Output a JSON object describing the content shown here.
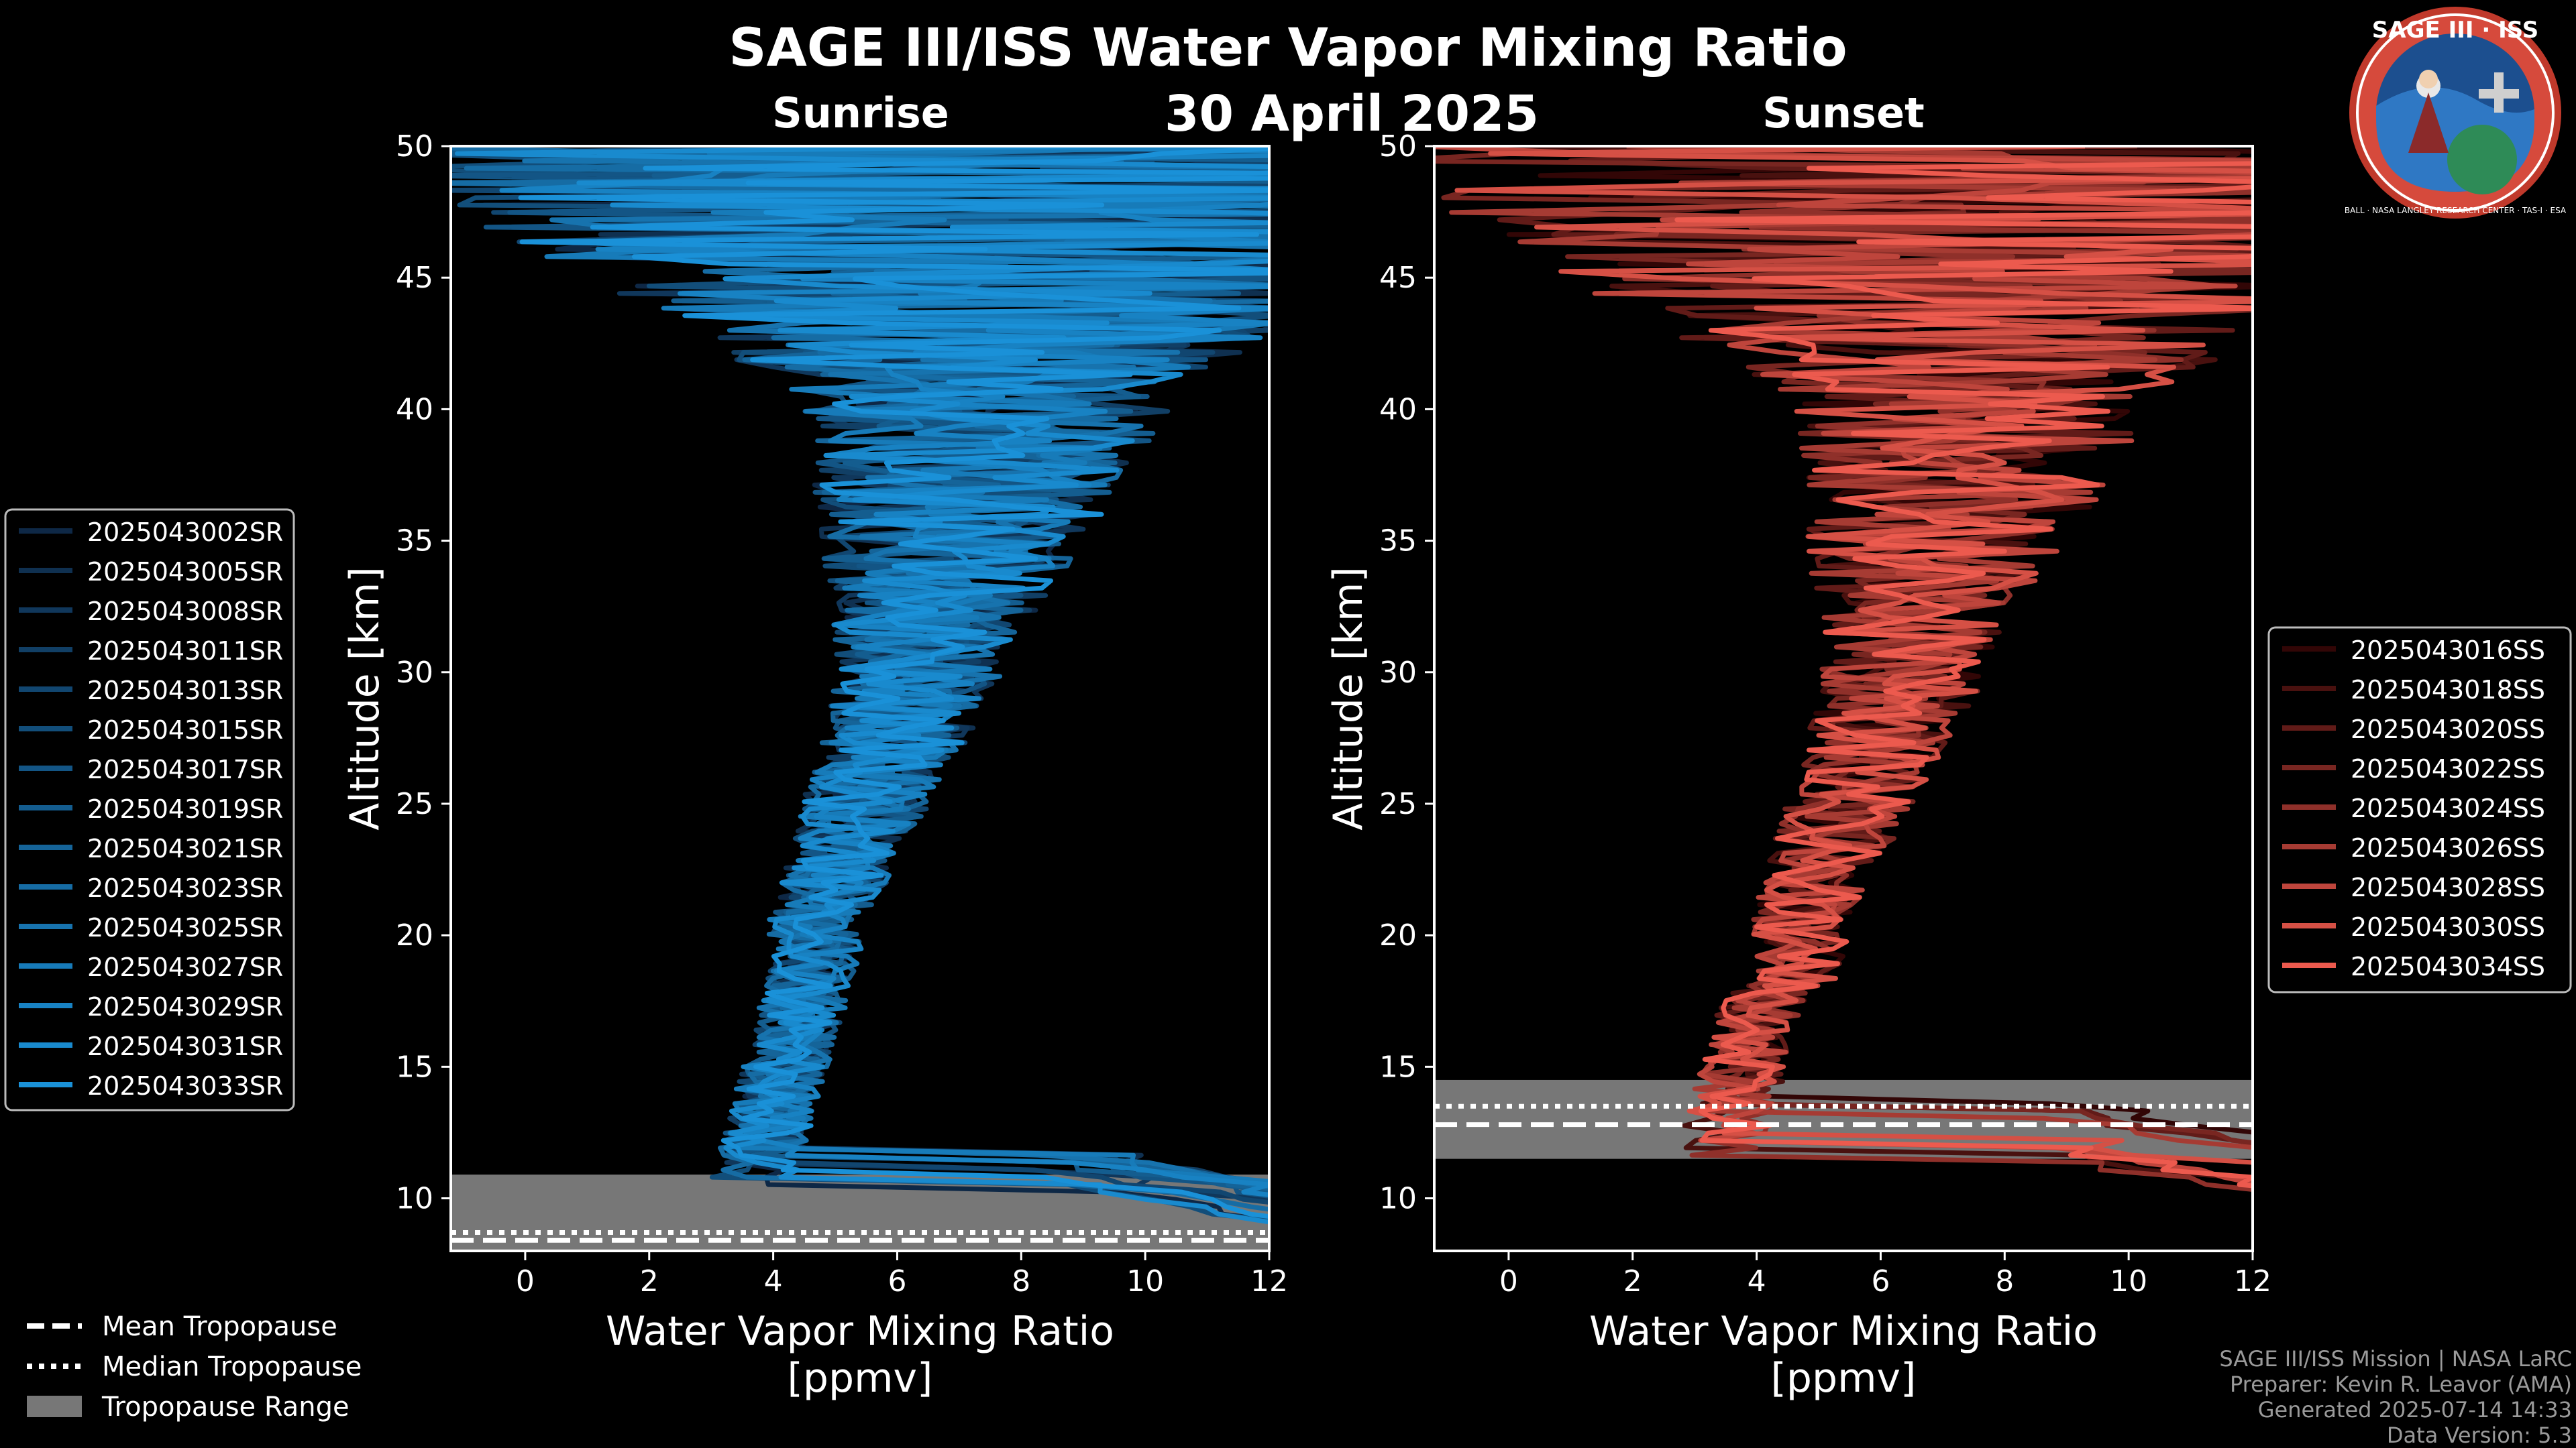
{
  "title": "SAGE III/ISS Water Vapor Mixing Ratio",
  "date": "30 April 2025",
  "logo": {
    "text_top": "SAGE III · ISS",
    "text_ring": "BALL · NASA LANGLEY RESEARCH CENTER · TAS-I · ESA"
  },
  "footer": {
    "line1": "SAGE III/ISS Mission | NASA LaRC",
    "line2": "Preparer: Kevin R. Leavor (AMA)",
    "line3": "Generated 2025-07-14 14:33",
    "line4": "Data Version: 5.3"
  },
  "bottom_legend": {
    "mean": "Mean Tropopause",
    "median": "Median Tropopause",
    "range": "Tropopause Range"
  },
  "colors": {
    "sunrise": "#1a8fd6",
    "sunset": "#ec5a4e",
    "tropo_range": "#777777"
  },
  "chart_data": [
    {
      "type": "line",
      "title": "Sunrise",
      "xlabel": "Water Vapor Mixing Ratio\n[ppmv]",
      "ylabel": "Altitude [km]",
      "xlim": [
        -1.2,
        12
      ],
      "ylim": [
        8,
        50
      ],
      "xticks": [
        0,
        2,
        4,
        6,
        8,
        10,
        12
      ],
      "yticks": [
        10,
        15,
        20,
        25,
        30,
        35,
        40,
        45,
        50
      ],
      "series_names": [
        "2025043002SR",
        "2025043005SR",
        "2025043008SR",
        "2025043011SR",
        "2025043013SR",
        "2025043015SR",
        "2025043017SR",
        "2025043019SR",
        "2025043021SR",
        "2025043023SR",
        "2025043025SR",
        "2025043027SR",
        "2025043029SR",
        "2025043031SR",
        "2025043033SR"
      ],
      "tropopause": {
        "mean": 8.4,
        "median": 8.7,
        "range": [
          8,
          10.9
        ]
      }
    },
    {
      "type": "line",
      "title": "Sunset",
      "xlabel": "Water Vapor Mixing Ratio\n[ppmv]",
      "ylabel": "Altitude [km]",
      "xlim": [
        -1.2,
        12
      ],
      "ylim": [
        8,
        50
      ],
      "xticks": [
        0,
        2,
        4,
        6,
        8,
        10,
        12
      ],
      "yticks": [
        10,
        15,
        20,
        25,
        30,
        35,
        40,
        45,
        50
      ],
      "series_names": [
        "2025043016SS",
        "2025043018SS",
        "2025043020SS",
        "2025043022SS",
        "2025043024SS",
        "2025043026SS",
        "2025043028SS",
        "2025043030SS",
        "2025043034SS"
      ],
      "tropopause": {
        "mean": 12.8,
        "median": 13.5,
        "range": [
          11.5,
          14.5
        ]
      }
    }
  ]
}
